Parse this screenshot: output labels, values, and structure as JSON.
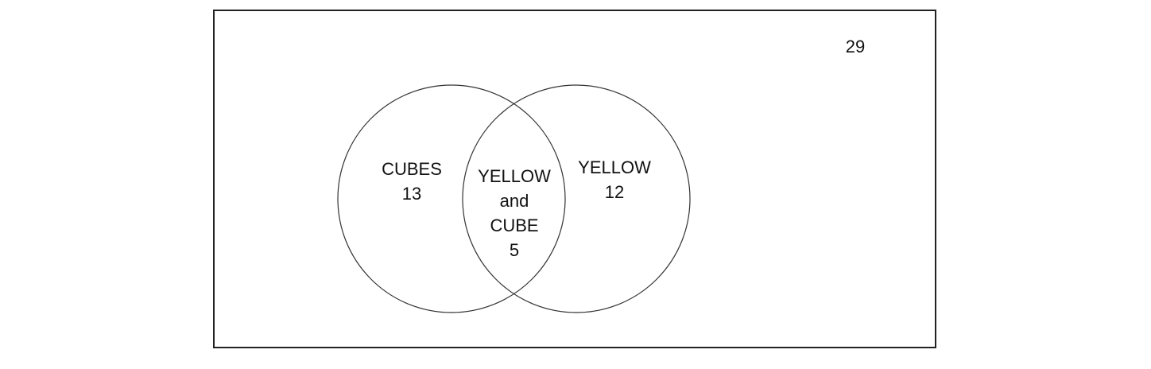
{
  "diagram": {
    "universe_total": "29",
    "left_set": {
      "name": "CUBES",
      "count": "13"
    },
    "right_set": {
      "name": "YELLOW",
      "count": "12"
    },
    "intersection": {
      "line1": "YELLOW",
      "line2": "and",
      "line3": "CUBE",
      "count": "5"
    },
    "colors": {
      "outline": "#222222",
      "circle_stroke": "#333333",
      "background": "#ffffff",
      "text": "#111111"
    }
  }
}
